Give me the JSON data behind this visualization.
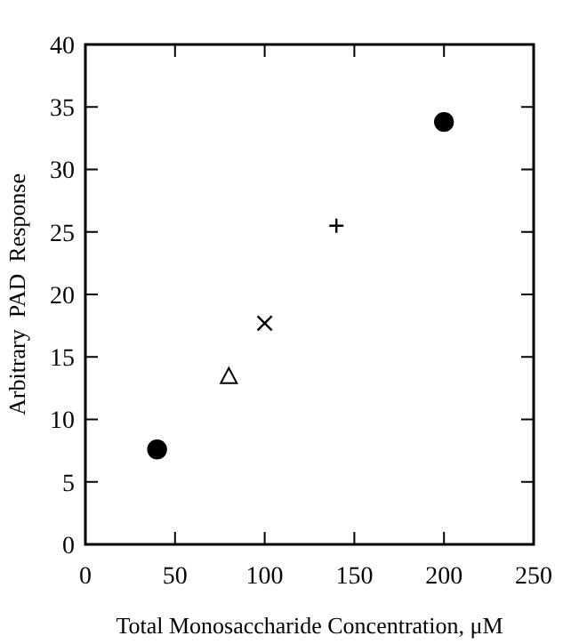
{
  "chart_data": {
    "type": "scatter",
    "xlabel": "Total Monosaccharide Concentration, μM",
    "ylabel": "Arbitrary  PAD  Response",
    "xlim": [
      0,
      250
    ],
    "xticks": [
      0,
      50,
      100,
      150,
      200,
      250
    ],
    "ylim": [
      0,
      40
    ],
    "yticks": [
      0,
      5,
      10,
      15,
      20,
      25,
      30,
      35,
      40
    ],
    "grid": false,
    "series": [
      {
        "color": "#000000",
        "marker": "circle",
        "x": [
          40
        ],
        "values": [
          7.6
        ]
      },
      {
        "color": "#000000",
        "marker": "triangle",
        "x": [
          80
        ],
        "values": [
          13.4
        ]
      },
      {
        "color": "#000000",
        "marker": "cross",
        "x": [
          100
        ],
        "values": [
          17.7
        ]
      },
      {
        "color": "#000000",
        "marker": "plus",
        "x": [
          140
        ],
        "values": [
          25.5
        ]
      },
      {
        "color": "#000000",
        "marker": "circle",
        "x": [
          200
        ],
        "values": [
          33.8
        ]
      }
    ]
  }
}
